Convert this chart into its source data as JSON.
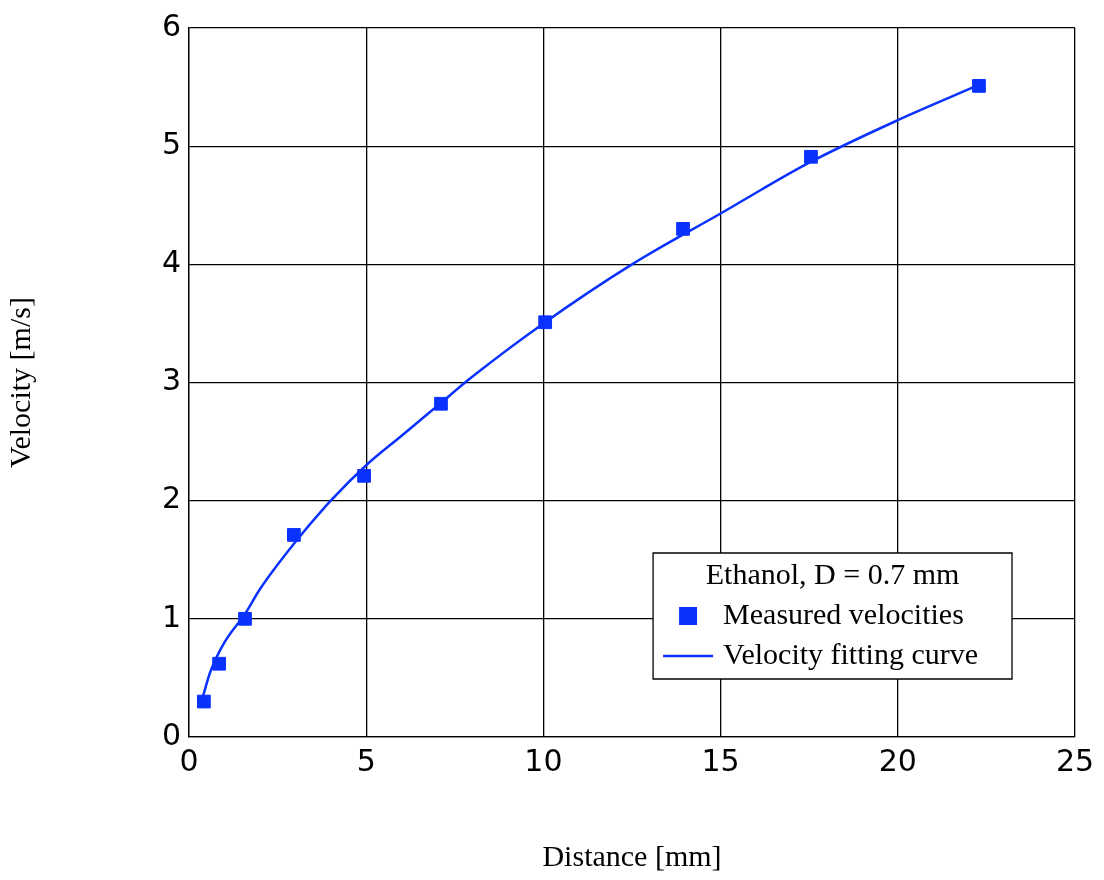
{
  "chart_data": {
    "type": "scatter",
    "xlabel": "Distance [mm]",
    "ylabel": "Velocity [m/s]",
    "legend_title": "Ethanol, D = 0.7 mm",
    "series": [
      {
        "name": "Measured velocities",
        "color": "#0a32ff",
        "marker": "square",
        "x": [
          0.42,
          0.85,
          1.58,
          2.96,
          4.94,
          7.11,
          10.05,
          13.94,
          17.55,
          22.29
        ],
        "values": [
          0.3,
          0.62,
          1.0,
          1.71,
          2.21,
          2.82,
          3.51,
          4.3,
          4.91,
          5.51
        ]
      },
      {
        "name": "Velocity fitting curve",
        "type": "line",
        "color": "#0a32ff",
        "marker": "none",
        "line_style": "solid",
        "x": [
          0.4,
          0.6,
          1.0,
          1.6,
          2.0,
          3.0,
          4.0,
          5.0,
          6.0,
          7.0,
          8.0,
          10.0,
          12.5,
          15.0,
          17.5,
          20.0,
          22.3
        ],
        "values": [
          0.35,
          0.55,
          0.8,
          1.05,
          1.25,
          1.65,
          2.0,
          2.3,
          2.55,
          2.8,
          3.05,
          3.5,
          4.0,
          4.43,
          4.86,
          5.22,
          5.52
        ]
      }
    ],
    "xlim": [
      0,
      25
    ],
    "xticks": [
      0,
      5,
      10,
      15,
      20,
      25
    ],
    "ylim": [
      0,
      6
    ],
    "yticks": [
      0,
      1,
      2,
      3,
      4,
      5,
      6
    ],
    "grid": true,
    "legend": "bottom right"
  }
}
